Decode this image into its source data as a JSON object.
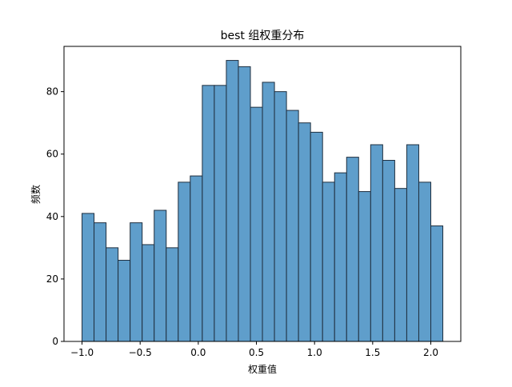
{
  "chart_data": {
    "type": "bar",
    "title": "best 组权重分布",
    "xlabel": "权重值",
    "ylabel": "频数",
    "bin_edges": [
      -1.0,
      -0.8966,
      -0.7931,
      -0.6897,
      -0.5862,
      -0.4828,
      -0.3793,
      -0.2759,
      -0.1724,
      -0.069,
      0.0345,
      0.1379,
      0.2414,
      0.3448,
      0.4483,
      0.5517,
      0.6552,
      0.7586,
      0.8621,
      0.9655,
      1.069,
      1.1724,
      1.2759,
      1.3793,
      1.4828,
      1.5862,
      1.6897,
      1.7931,
      1.8966,
      2.0,
      2.1034
    ],
    "values": [
      41,
      38,
      30,
      26,
      38,
      31,
      42,
      30,
      51,
      53,
      82,
      82,
      90,
      88,
      75,
      83,
      80,
      74,
      70,
      67,
      51,
      54,
      59,
      48,
      63,
      58,
      49,
      63,
      51,
      37
    ],
    "xlim": [
      -1.155,
      2.258
    ],
    "ylim": [
      0,
      94.5
    ],
    "xticks": [
      -1.0,
      -0.5,
      0.0,
      0.5,
      1.0,
      1.5,
      2.0
    ],
    "xtick_labels": [
      "−1.0",
      "−0.5",
      "0.0",
      "0.5",
      "1.0",
      "1.5",
      "2.0"
    ],
    "yticks": [
      0,
      20,
      40,
      60,
      80
    ],
    "ytick_labels": [
      "0",
      "20",
      "40",
      "60",
      "80"
    ],
    "grid": false,
    "bar_color": "#5f9ecb",
    "edge_color": "#1f2f3f"
  }
}
